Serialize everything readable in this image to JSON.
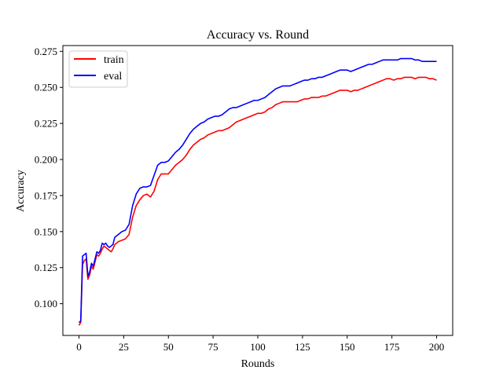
{
  "chart_data": {
    "type": "line",
    "title": "Accuracy vs. Round",
    "xlabel": "Rounds",
    "ylabel": "Accuracy",
    "xlim": [
      -9,
      209
    ],
    "ylim": [
      0.078,
      0.279
    ],
    "xticks": [
      0,
      25,
      50,
      75,
      100,
      125,
      150,
      175,
      200
    ],
    "yticks": [
      0.1,
      0.125,
      0.15,
      0.175,
      0.2,
      0.225,
      0.25,
      0.275
    ],
    "xtick_labels": [
      "0",
      "25",
      "50",
      "75",
      "100",
      "125",
      "150",
      "175",
      "200"
    ],
    "ytick_labels": [
      "0.100",
      "0.125",
      "0.150",
      "0.175",
      "0.200",
      "0.225",
      "0.250",
      "0.275"
    ],
    "grid": false,
    "legend_position": "top-left",
    "series": [
      {
        "name": "train",
        "color": "#ff0000",
        "points": [
          [
            0,
            0.085
          ],
          [
            1,
            0.087
          ],
          [
            2,
            0.127
          ],
          [
            3,
            0.13
          ],
          [
            4,
            0.131
          ],
          [
            5,
            0.117
          ],
          [
            6,
            0.12
          ],
          [
            7,
            0.126
          ],
          [
            8,
            0.124
          ],
          [
            9,
            0.129
          ],
          [
            10,
            0.134
          ],
          [
            11,
            0.133
          ],
          [
            12,
            0.135
          ],
          [
            13,
            0.138
          ],
          [
            14,
            0.14
          ],
          [
            15,
            0.139
          ],
          [
            16,
            0.138
          ],
          [
            17,
            0.137
          ],
          [
            18,
            0.136
          ],
          [
            19,
            0.138
          ],
          [
            20,
            0.141
          ],
          [
            22,
            0.143
          ],
          [
            24,
            0.144
          ],
          [
            26,
            0.145
          ],
          [
            28,
            0.148
          ],
          [
            30,
            0.16
          ],
          [
            32,
            0.168
          ],
          [
            34,
            0.172
          ],
          [
            36,
            0.175
          ],
          [
            38,
            0.176
          ],
          [
            40,
            0.174
          ],
          [
            42,
            0.178
          ],
          [
            44,
            0.186
          ],
          [
            46,
            0.19
          ],
          [
            48,
            0.19
          ],
          [
            50,
            0.19
          ],
          [
            52,
            0.193
          ],
          [
            54,
            0.196
          ],
          [
            56,
            0.198
          ],
          [
            58,
            0.2
          ],
          [
            60,
            0.203
          ],
          [
            62,
            0.207
          ],
          [
            64,
            0.21
          ],
          [
            66,
            0.212
          ],
          [
            68,
            0.214
          ],
          [
            70,
            0.215
          ],
          [
            72,
            0.217
          ],
          [
            74,
            0.218
          ],
          [
            76,
            0.219
          ],
          [
            78,
            0.22
          ],
          [
            80,
            0.22
          ],
          [
            82,
            0.221
          ],
          [
            84,
            0.222
          ],
          [
            86,
            0.224
          ],
          [
            88,
            0.226
          ],
          [
            90,
            0.227
          ],
          [
            92,
            0.228
          ],
          [
            94,
            0.229
          ],
          [
            96,
            0.23
          ],
          [
            98,
            0.231
          ],
          [
            100,
            0.232
          ],
          [
            102,
            0.232
          ],
          [
            104,
            0.233
          ],
          [
            106,
            0.235
          ],
          [
            108,
            0.236
          ],
          [
            110,
            0.238
          ],
          [
            112,
            0.239
          ],
          [
            114,
            0.24
          ],
          [
            116,
            0.24
          ],
          [
            118,
            0.24
          ],
          [
            120,
            0.24
          ],
          [
            122,
            0.24
          ],
          [
            124,
            0.241
          ],
          [
            126,
            0.242
          ],
          [
            128,
            0.242
          ],
          [
            130,
            0.243
          ],
          [
            132,
            0.243
          ],
          [
            134,
            0.243
          ],
          [
            136,
            0.244
          ],
          [
            138,
            0.244
          ],
          [
            140,
            0.245
          ],
          [
            142,
            0.246
          ],
          [
            144,
            0.247
          ],
          [
            146,
            0.248
          ],
          [
            148,
            0.248
          ],
          [
            150,
            0.248
          ],
          [
            152,
            0.247
          ],
          [
            154,
            0.248
          ],
          [
            156,
            0.248
          ],
          [
            158,
            0.249
          ],
          [
            160,
            0.25
          ],
          [
            162,
            0.251
          ],
          [
            164,
            0.252
          ],
          [
            166,
            0.253
          ],
          [
            168,
            0.254
          ],
          [
            170,
            0.255
          ],
          [
            172,
            0.256
          ],
          [
            174,
            0.256
          ],
          [
            176,
            0.255
          ],
          [
            178,
            0.256
          ],
          [
            180,
            0.256
          ],
          [
            182,
            0.257
          ],
          [
            184,
            0.257
          ],
          [
            186,
            0.257
          ],
          [
            188,
            0.256
          ],
          [
            190,
            0.257
          ],
          [
            192,
            0.257
          ],
          [
            194,
            0.257
          ],
          [
            196,
            0.256
          ],
          [
            198,
            0.256
          ],
          [
            200,
            0.255
          ]
        ]
      },
      {
        "name": "eval",
        "color": "#0000ff",
        "points": [
          [
            0,
            0.087
          ],
          [
            1,
            0.088
          ],
          [
            2,
            0.133
          ],
          [
            3,
            0.134
          ],
          [
            4,
            0.135
          ],
          [
            5,
            0.119
          ],
          [
            6,
            0.122
          ],
          [
            7,
            0.128
          ],
          [
            8,
            0.126
          ],
          [
            9,
            0.131
          ],
          [
            10,
            0.136
          ],
          [
            11,
            0.135
          ],
          [
            12,
            0.137
          ],
          [
            13,
            0.142
          ],
          [
            14,
            0.141
          ],
          [
            15,
            0.142
          ],
          [
            16,
            0.14
          ],
          [
            17,
            0.139
          ],
          [
            18,
            0.14
          ],
          [
            19,
            0.141
          ],
          [
            20,
            0.146
          ],
          [
            22,
            0.148
          ],
          [
            24,
            0.15
          ],
          [
            26,
            0.151
          ],
          [
            28,
            0.155
          ],
          [
            30,
            0.168
          ],
          [
            32,
            0.176
          ],
          [
            34,
            0.18
          ],
          [
            36,
            0.181
          ],
          [
            38,
            0.181
          ],
          [
            40,
            0.182
          ],
          [
            42,
            0.189
          ],
          [
            44,
            0.196
          ],
          [
            46,
            0.198
          ],
          [
            48,
            0.198
          ],
          [
            50,
            0.199
          ],
          [
            52,
            0.202
          ],
          [
            54,
            0.205
          ],
          [
            56,
            0.207
          ],
          [
            58,
            0.21
          ],
          [
            60,
            0.214
          ],
          [
            62,
            0.218
          ],
          [
            64,
            0.221
          ],
          [
            66,
            0.223
          ],
          [
            68,
            0.225
          ],
          [
            70,
            0.226
          ],
          [
            72,
            0.228
          ],
          [
            74,
            0.229
          ],
          [
            76,
            0.23
          ],
          [
            78,
            0.23
          ],
          [
            80,
            0.231
          ],
          [
            82,
            0.233
          ],
          [
            84,
            0.235
          ],
          [
            86,
            0.236
          ],
          [
            88,
            0.236
          ],
          [
            90,
            0.237
          ],
          [
            92,
            0.238
          ],
          [
            94,
            0.239
          ],
          [
            96,
            0.24
          ],
          [
            98,
            0.241
          ],
          [
            100,
            0.241
          ],
          [
            102,
            0.242
          ],
          [
            104,
            0.243
          ],
          [
            106,
            0.245
          ],
          [
            108,
            0.247
          ],
          [
            110,
            0.249
          ],
          [
            112,
            0.25
          ],
          [
            114,
            0.251
          ],
          [
            116,
            0.251
          ],
          [
            118,
            0.251
          ],
          [
            120,
            0.252
          ],
          [
            122,
            0.253
          ],
          [
            124,
            0.254
          ],
          [
            126,
            0.255
          ],
          [
            128,
            0.255
          ],
          [
            130,
            0.256
          ],
          [
            132,
            0.256
          ],
          [
            134,
            0.257
          ],
          [
            136,
            0.257
          ],
          [
            138,
            0.258
          ],
          [
            140,
            0.259
          ],
          [
            142,
            0.26
          ],
          [
            144,
            0.261
          ],
          [
            146,
            0.262
          ],
          [
            148,
            0.262
          ],
          [
            150,
            0.262
          ],
          [
            152,
            0.261
          ],
          [
            154,
            0.262
          ],
          [
            156,
            0.263
          ],
          [
            158,
            0.264
          ],
          [
            160,
            0.265
          ],
          [
            162,
            0.266
          ],
          [
            164,
            0.266
          ],
          [
            166,
            0.267
          ],
          [
            168,
            0.268
          ],
          [
            170,
            0.269
          ],
          [
            172,
            0.269
          ],
          [
            174,
            0.269
          ],
          [
            176,
            0.269
          ],
          [
            178,
            0.269
          ],
          [
            180,
            0.27
          ],
          [
            182,
            0.27
          ],
          [
            184,
            0.27
          ],
          [
            186,
            0.27
          ],
          [
            188,
            0.269
          ],
          [
            190,
            0.269
          ],
          [
            192,
            0.268
          ],
          [
            194,
            0.268
          ],
          [
            196,
            0.268
          ],
          [
            198,
            0.268
          ],
          [
            200,
            0.268
          ]
        ]
      }
    ]
  }
}
